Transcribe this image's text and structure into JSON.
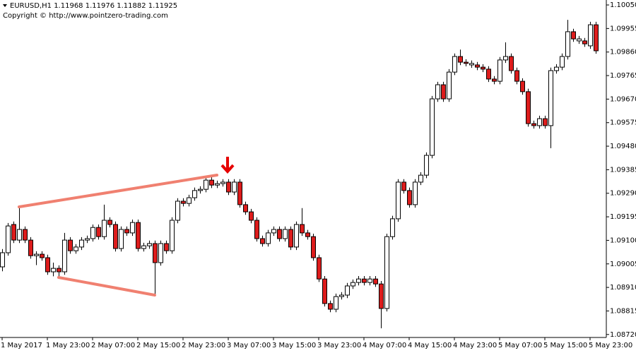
{
  "chart_data": {
    "type": "candlestick",
    "title": "EURUSD,H1  1.11968 1.11976 1.11882 1.11925",
    "subtitle": "Copyright © http://www.pointzero-trading.com",
    "up_color": "#ffffff",
    "down_color": "#dd1c1c",
    "categories": [
      "1 May 2017",
      null,
      null,
      null,
      null,
      null,
      null,
      null,
      "1 May 23:00",
      null,
      null,
      null,
      null,
      null,
      null,
      null,
      "2 May 07:00",
      null,
      null,
      null,
      null,
      null,
      null,
      null,
      "2 May 15:00",
      null,
      null,
      null,
      null,
      null,
      null,
      null,
      "2 May 23:00",
      null,
      null,
      null,
      null,
      null,
      null,
      null,
      "3 May 07:00",
      null,
      null,
      null,
      null,
      null,
      null,
      null,
      "3 May 15:00",
      null,
      null,
      null,
      null,
      null,
      null,
      null,
      "3 May 23:00",
      null,
      null,
      null,
      null,
      null,
      null,
      null,
      "4 May 07:00",
      null,
      null,
      null,
      null,
      null,
      null,
      null,
      "4 May 15:00",
      null,
      null,
      null,
      null,
      null,
      null,
      null,
      "4 May 23:00",
      null,
      null,
      null,
      null,
      null,
      null,
      null,
      "5 May 07:00",
      null,
      null,
      null,
      null,
      null,
      null,
      null,
      "5 May 15:00",
      null,
      null,
      null,
      null,
      null,
      null,
      null,
      "5 May 23:00",
      null
    ],
    "open": [
      1.08993,
      1.0905,
      1.09164,
      1.09101,
      1.09144,
      1.09101,
      1.09038,
      1.09044,
      1.0903,
      1.08973,
      1.08987,
      1.08973,
      1.09101,
      1.09058,
      1.09073,
      1.09101,
      1.09107,
      1.09152,
      1.09115,
      1.09181,
      1.09164,
      1.09067,
      1.09144,
      1.0913,
      1.09172,
      1.09067,
      1.09078,
      1.09087,
      1.0901,
      1.09087,
      1.09058,
      1.09181,
      1.09258,
      1.09249,
      1.09272,
      1.09301,
      1.09306,
      1.09343,
      1.09323,
      1.09329,
      1.09335,
      1.09295,
      1.09335,
      1.09244,
      1.09215,
      1.09181,
      1.09107,
      1.09087,
      1.0913,
      1.09144,
      1.09107,
      1.09144,
      1.09073,
      1.09164,
      1.0913,
      1.09115,
      1.0903,
      1.08944,
      1.08845,
      1.08822,
      1.08873,
      1.08879,
      1.08916,
      1.0893,
      1.08944,
      1.0893,
      1.08944,
      1.08924,
      1.08825,
      1.09115,
      1.09187,
      1.09335,
      1.09301,
      1.09244,
      1.09335,
      1.09363,
      1.09443,
      1.09671,
      1.09728,
      1.09671,
      1.09779,
      1.09842,
      1.09819,
      1.09808,
      1.09808,
      1.09799,
      1.09791,
      1.09751,
      1.09742,
      1.09828,
      1.09842,
      1.09785,
      1.09742,
      1.097,
      1.09571,
      1.09563,
      1.09591,
      1.09563,
      1.09785,
      1.09799,
      1.09842,
      1.09942,
      1.09905,
      1.09905,
      1.09885,
      1.0997
    ],
    "high": [
      1.09065,
      1.0917,
      1.09176,
      1.0924,
      1.09156,
      1.09113,
      1.09056,
      1.09056,
      1.09042,
      1.0901,
      1.08999,
      1.0913,
      1.09113,
      1.09085,
      1.09113,
      1.09119,
      1.09164,
      1.09164,
      1.09244,
      1.09193,
      1.09176,
      1.09156,
      1.09156,
      1.09184,
      1.09184,
      1.0909,
      1.09099,
      1.09099,
      1.09099,
      1.09099,
      1.09193,
      1.0927,
      1.0927,
      1.09284,
      1.09313,
      1.09318,
      1.09355,
      1.09355,
      1.09341,
      1.09347,
      1.09347,
      1.09347,
      1.09347,
      1.09256,
      1.09227,
      1.09193,
      1.09119,
      1.09142,
      1.09156,
      1.09156,
      1.09156,
      1.09156,
      1.09176,
      1.0923,
      1.09142,
      1.09127,
      1.09042,
      1.08956,
      1.08857,
      1.08885,
      1.08891,
      1.08928,
      1.08942,
      1.08956,
      1.08956,
      1.08956,
      1.08956,
      1.08936,
      1.09127,
      1.09199,
      1.09347,
      1.09347,
      1.09313,
      1.09347,
      1.09375,
      1.09455,
      1.09683,
      1.0974,
      1.0974,
      1.09791,
      1.09854,
      1.0987,
      1.09831,
      1.09826,
      1.0982,
      1.09811,
      1.09803,
      1.09763,
      1.0984,
      1.09899,
      1.09854,
      1.09797,
      1.09754,
      1.09712,
      1.09583,
      1.09603,
      1.09603,
      1.09797,
      1.09811,
      1.09854,
      1.0999,
      1.09954,
      1.09925,
      1.09917,
      1.09982,
      1.09982
    ],
    "low": [
      1.08975,
      1.09038,
      1.09089,
      1.09089,
      1.09089,
      1.09026,
      1.09,
      1.09018,
      1.08961,
      1.08955,
      1.0895,
      1.08961,
      1.09046,
      1.09046,
      1.09061,
      1.09089,
      1.09095,
      1.09103,
      1.09103,
      1.09152,
      1.09055,
      1.09055,
      1.09118,
      1.09118,
      1.09055,
      1.09055,
      1.09066,
      1.08879,
      1.08998,
      1.09046,
      1.09046,
      1.09169,
      1.09237,
      1.09237,
      1.0926,
      1.09289,
      1.09294,
      1.09311,
      1.09311,
      1.09317,
      1.09283,
      1.09283,
      1.09232,
      1.09203,
      1.09169,
      1.09095,
      1.09075,
      1.09075,
      1.09118,
      1.09095,
      1.09095,
      1.09061,
      1.09061,
      1.09118,
      1.09103,
      1.09018,
      1.08932,
      1.08833,
      1.0881,
      1.0881,
      1.08861,
      1.08867,
      1.08904,
      1.08918,
      1.08918,
      1.08918,
      1.08912,
      1.08745,
      1.08813,
      1.09103,
      1.09175,
      1.09289,
      1.09232,
      1.09232,
      1.09323,
      1.09351,
      1.09431,
      1.09659,
      1.09659,
      1.09659,
      1.09767,
      1.09807,
      1.09802,
      1.09796,
      1.09787,
      1.09779,
      1.09739,
      1.0973,
      1.0973,
      1.09816,
      1.09773,
      1.0973,
      1.09688,
      1.09559,
      1.09551,
      1.09551,
      1.09551,
      1.09472,
      1.09773,
      1.09787,
      1.0983,
      1.09901,
      1.09893,
      1.09881,
      1.09873,
      1.09853
    ],
    "close": [
      1.0905,
      1.09158,
      1.09101,
      1.09144,
      1.09101,
      1.09038,
      1.09044,
      1.0903,
      1.08973,
      1.08987,
      1.08973,
      1.09101,
      1.09058,
      1.09073,
      1.09101,
      1.09107,
      1.09152,
      1.09115,
      1.09181,
      1.09164,
      1.09067,
      1.09144,
      1.0913,
      1.09172,
      1.09067,
      1.09078,
      1.09087,
      1.0901,
      1.09087,
      1.09058,
      1.09181,
      1.09258,
      1.09249,
      1.09272,
      1.09301,
      1.09306,
      1.09343,
      1.09323,
      1.09329,
      1.09335,
      1.09295,
      1.09335,
      1.09244,
      1.09215,
      1.09181,
      1.09107,
      1.09087,
      1.0913,
      1.09144,
      1.09107,
      1.09144,
      1.09073,
      1.09164,
      1.0913,
      1.09115,
      1.0903,
      1.08944,
      1.08845,
      1.08822,
      1.08873,
      1.08879,
      1.08916,
      1.0893,
      1.08944,
      1.0893,
      1.08944,
      1.08924,
      1.08825,
      1.09115,
      1.09187,
      1.09335,
      1.09301,
      1.09244,
      1.09335,
      1.09363,
      1.09443,
      1.09671,
      1.09728,
      1.09671,
      1.09779,
      1.09842,
      1.09819,
      1.09814,
      1.09814,
      1.09799,
      1.09791,
      1.09751,
      1.09742,
      1.09828,
      1.09842,
      1.09785,
      1.09742,
      1.097,
      1.09571,
      1.09563,
      1.09591,
      1.09563,
      1.09785,
      1.09799,
      1.09842,
      1.09942,
      1.09913,
      1.09913,
      1.09893,
      1.0997,
      1.09865
    ],
    "ylim": [
      1.08708,
      1.1007
    ],
    "yticks": [
      {
        "value": 1.1005,
        "label": "1.10050"
      },
      1.09955,
      {
        "value": 1.0986,
        "label": "1.09860"
      },
      1.09765,
      {
        "value": 1.0967,
        "label": "1.09670"
      },
      1.09575,
      {
        "value": 1.0948,
        "label": "1.09480"
      },
      1.09385,
      {
        "value": 1.0929,
        "label": "1.09290"
      },
      1.09195,
      {
        "value": 1.091,
        "label": "1.09100"
      },
      1.09005,
      {
        "value": 1.0891,
        "label": "1.08910"
      },
      1.08815,
      {
        "value": 1.0872,
        "label": "1.08720"
      }
    ],
    "grid": false
  }
}
